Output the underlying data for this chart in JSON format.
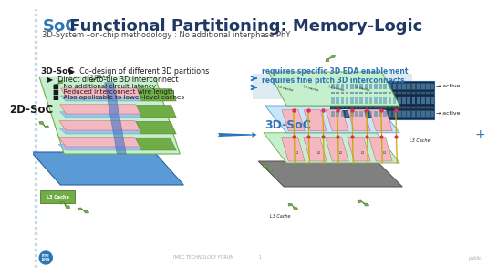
{
  "title_soc": "SoC",
  "title_rest": " Functional Partitioning: Memory-Logic",
  "subtitle": "3D-System –on-chip methodology : No additional interphase PhY",
  "label_2d": "2D-SoC",
  "label_3d": "3D-SoC",
  "bg_color": "#ffffff",
  "title_color_soc": "#2e75b6",
  "title_color_rest": "#1f3864",
  "subtitle_color": "#404040",
  "label_2d_color": "#1a1a1a",
  "label_3d_color": "#2e75b6",
  "arrow_right_texts": [
    "requires specific 3D EDA enablement",
    "requires fine pitch 3D interconnects"
  ],
  "arrow_right_color": "#2e75b6",
  "active_label": "active",
  "footer_center": "IMEC TECHNOLOGY FORUM",
  "footer_right": "public",
  "footer_page": "1",
  "chip_green_light": "#c6efce",
  "chip_green_dark": "#70ad47",
  "chip_pink": "#f4b8c1",
  "chip_blue_light": "#9dc3e6",
  "chip_blue_dark": "#4472c4",
  "highlight_bg": "#deeaf1",
  "border_color": "#2e75b6"
}
